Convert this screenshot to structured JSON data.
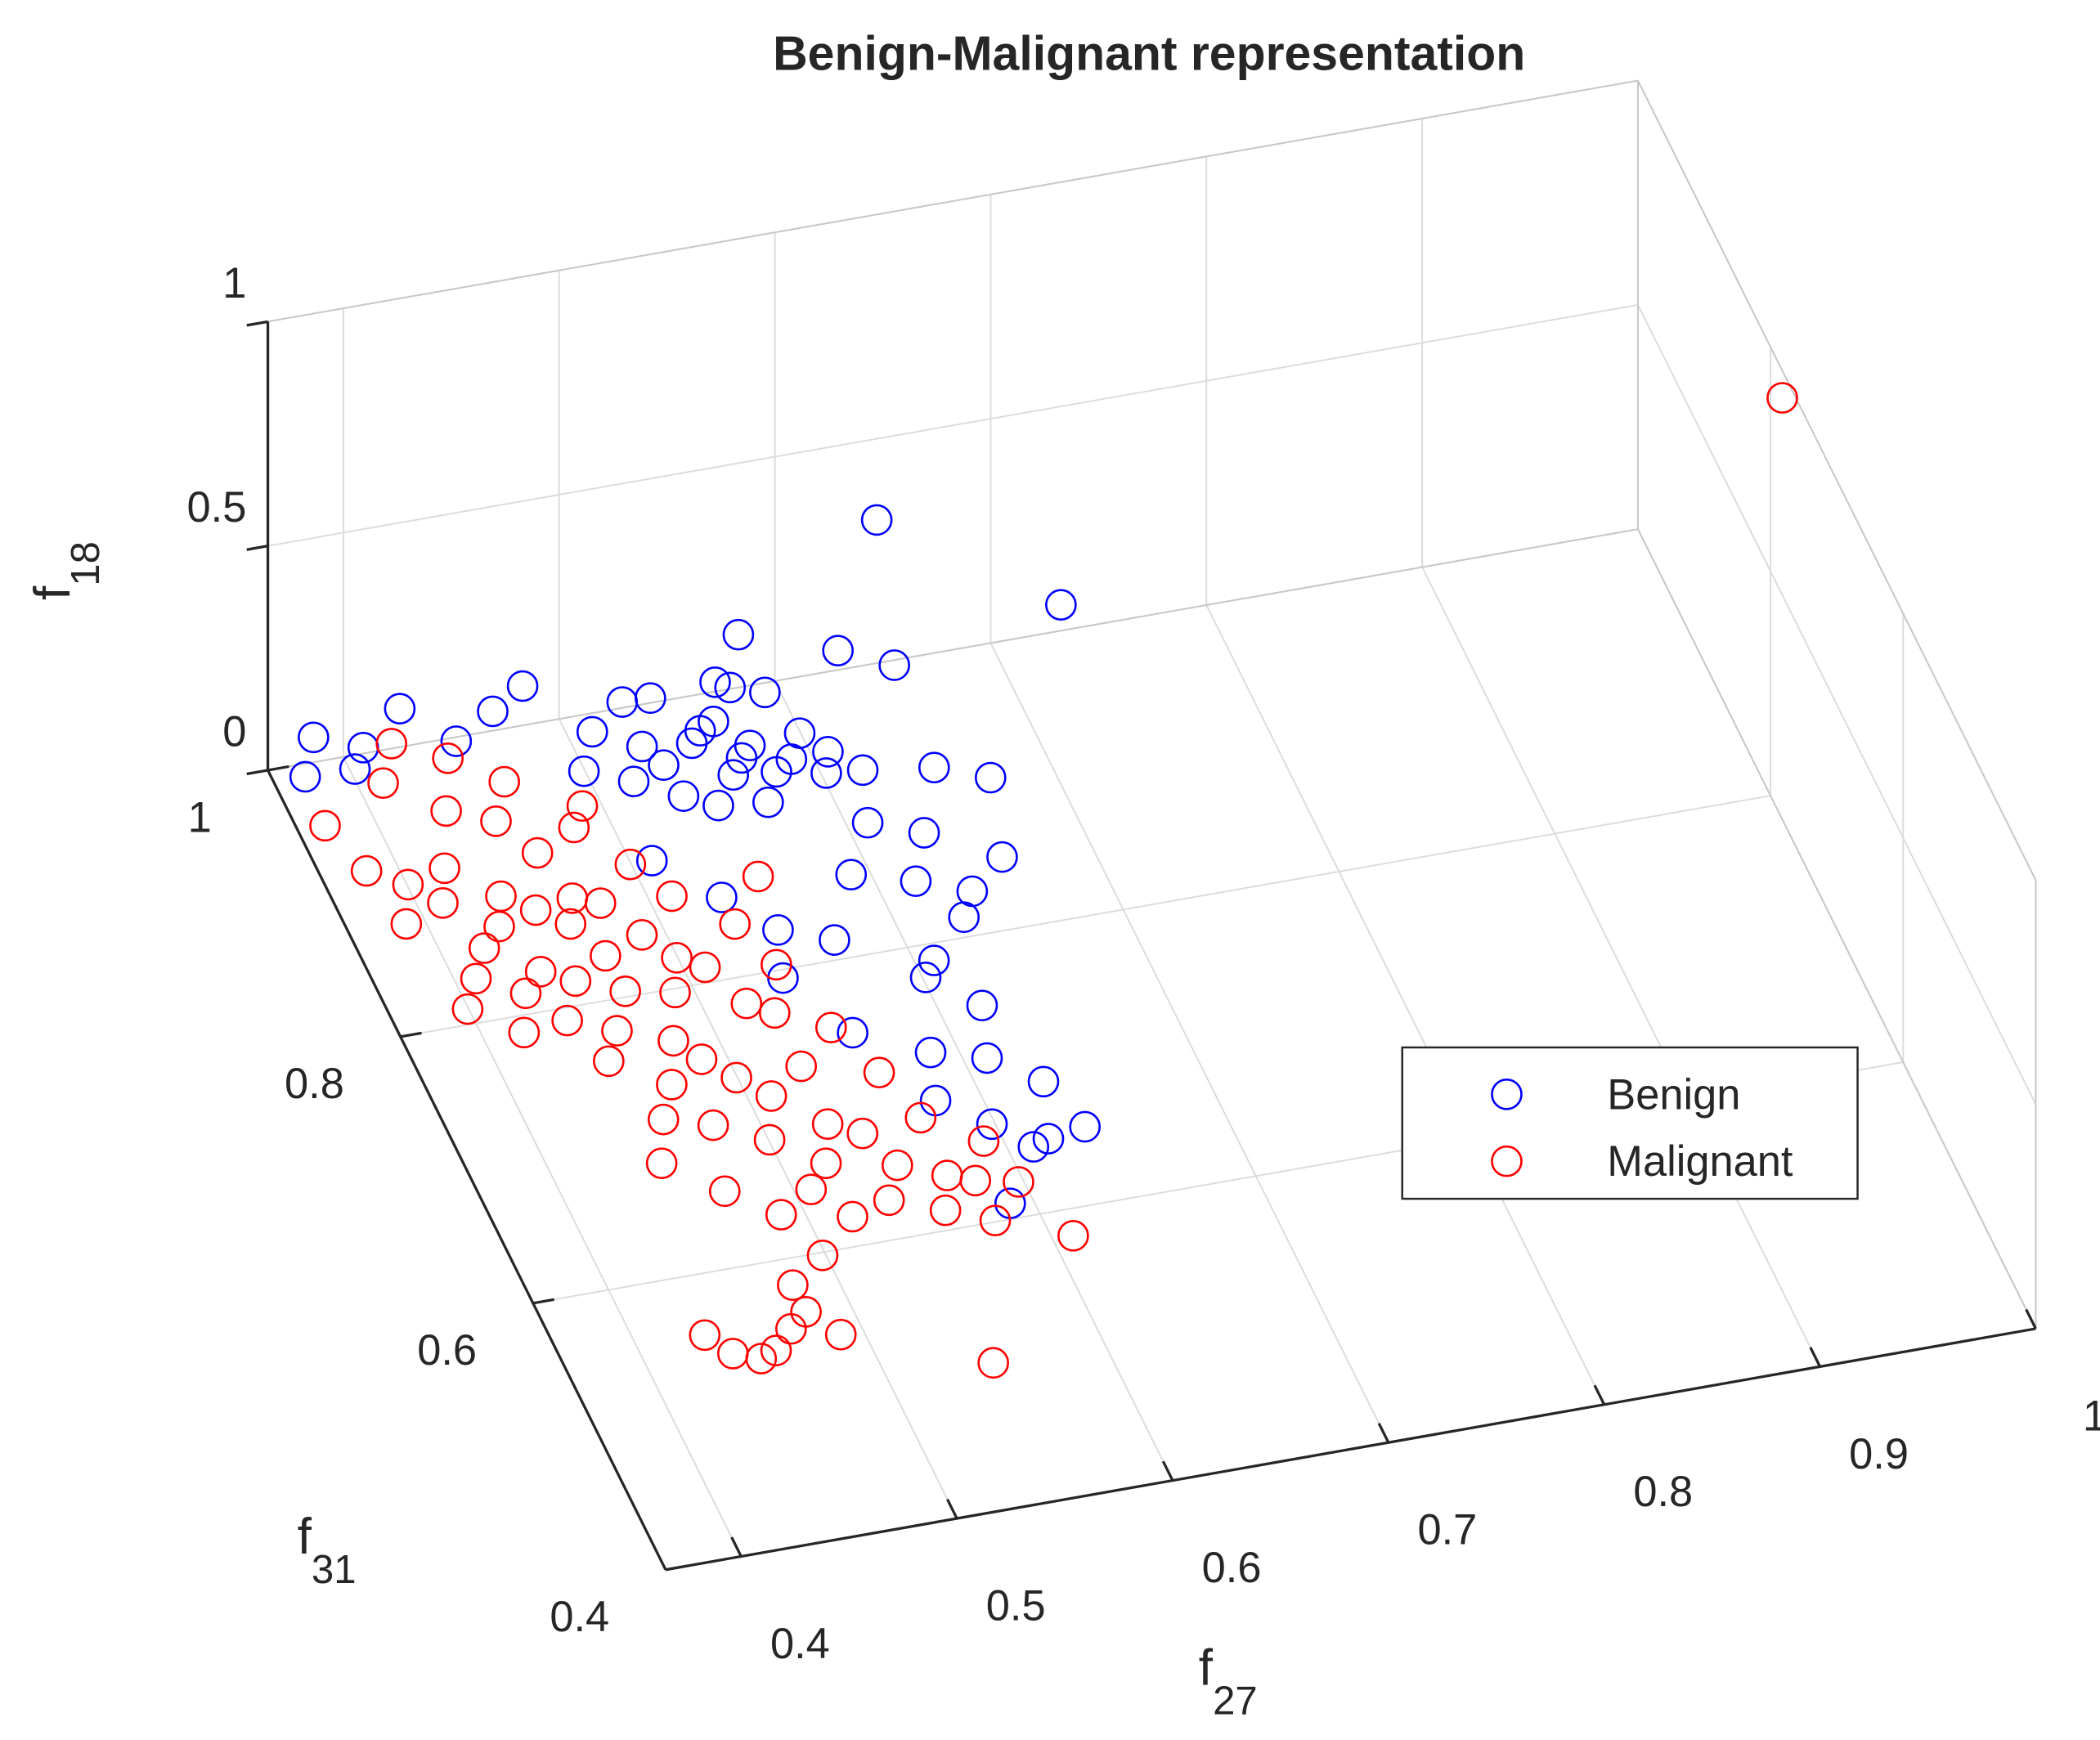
{
  "chart_data": {
    "type": "scatter3d",
    "title": "Benign-Malignant representation",
    "xlabel": {
      "text": "f",
      "subscript": "27"
    },
    "ylabel": {
      "text": "f",
      "subscript": "31"
    },
    "zlabel": {
      "text": "f",
      "subscript": "18"
    },
    "xlim": [
      0.365,
      1
    ],
    "ylim": [
      0.4,
      1
    ],
    "zlim": [
      0,
      1
    ],
    "xticks": [
      0.4,
      0.5,
      0.6,
      0.7,
      0.8,
      0.9,
      1
    ],
    "yticks": [
      0.4,
      0.6,
      0.8,
      1
    ],
    "zticks": [
      0,
      0.5,
      1
    ],
    "grid": true,
    "legend": "east",
    "series": [
      {
        "name": "Benign",
        "color": "#0000ff",
        "x": [
          0.52,
          0.54,
          0.55,
          0.56,
          0.53,
          0.57,
          0.58,
          0.51,
          0.55,
          0.59,
          0.5,
          0.53,
          0.56,
          0.54,
          0.57,
          0.6,
          0.52,
          0.58,
          0.49,
          0.55,
          0.61,
          0.56,
          0.53,
          0.59,
          0.57,
          0.58,
          0.62,
          0.64,
          0.48,
          0.6,
          0.62,
          0.61,
          0.63,
          0.62,
          0.6,
          0.59,
          0.61,
          0.58,
          0.6,
          0.62,
          0.59,
          0.61,
          0.6,
          0.57,
          0.55,
          0.56,
          0.58,
          0.65,
          0.66,
          0.64,
          0.63,
          0.58,
          0.38,
          0.37,
          0.39,
          0.4,
          0.42,
          0.44,
          0.46,
          0.5,
          0.52,
          0.54,
          0.53,
          0.63,
          0.7
        ],
        "y": [
          0.94,
          0.93,
          0.95,
          0.92,
          0.96,
          0.94,
          0.91,
          0.92,
          0.9,
          0.93,
          0.95,
          0.91,
          0.96,
          0.89,
          0.9,
          0.92,
          0.97,
          0.95,
          0.93,
          0.93,
          0.9,
          0.88,
          0.94,
          0.89,
          0.97,
          0.99,
          0.97,
          0.95,
          0.99,
          0.86,
          0.84,
          0.82,
          0.8,
          0.78,
          0.76,
          0.74,
          0.72,
          0.7,
          0.68,
          0.66,
          0.64,
          0.62,
          0.61,
          0.66,
          0.72,
          0.78,
          0.82,
          0.82,
          0.87,
          0.89,
          0.63,
          0.58,
          0.98,
          0.96,
          0.95,
          0.97,
          0.98,
          0.96,
          0.97,
          0.86,
          0.82,
          0.8,
          0.76,
          0.944,
          0.894
        ],
        "z": [
          0.1,
          0.12,
          0.08,
          0.1,
          0.14,
          0.06,
          0.11,
          0.09,
          0.13,
          0.1,
          0.12,
          0.07,
          0.15,
          0.1,
          0.12,
          0.08,
          0.11,
          0.14,
          0.1,
          0.16,
          0.09,
          0.12,
          0.05,
          0.13,
          0.1,
          0.15,
          0.14,
          0.15,
          0.12,
          0.1,
          0.12,
          0.08,
          0.1,
          0.11,
          0.09,
          0.12,
          0.1,
          0.08,
          0.11,
          0.1,
          0.09,
          0.1,
          0.12,
          0.1,
          0.09,
          0.11,
          0.12,
          0.1,
          0.12,
          0.1,
          0.08,
          0.1,
          0.12,
          0.1,
          0.13,
          0.11,
          0.15,
          0.12,
          0.14,
          0.1,
          0.12,
          0.09,
          0.11,
          0.5,
          0.4
        ]
      },
      {
        "name": "Malignant",
        "color": "#ff0000",
        "x": [
          0.44,
          0.45,
          0.43,
          0.46,
          0.42,
          0.47,
          0.44,
          0.41,
          0.45,
          0.48,
          0.43,
          0.46,
          0.4,
          0.42,
          0.49,
          0.44,
          0.47,
          0.5,
          0.41,
          0.45,
          0.48,
          0.43,
          0.46,
          0.39,
          0.42,
          0.5,
          0.47,
          0.44,
          0.52,
          0.51,
          0.4,
          0.38,
          0.49,
          0.53,
          0.45,
          0.48,
          0.41,
          0.39,
          0.54,
          0.43,
          0.37,
          0.4,
          0.41,
          0.38,
          0.49,
          0.5,
          0.52,
          0.51,
          0.53,
          0.5,
          0.54,
          0.49,
          0.52,
          0.55,
          0.56,
          0.48,
          0.47,
          0.46,
          0.53,
          0.51,
          0.55,
          0.57,
          0.58,
          0.56,
          0.57,
          0.59,
          0.54,
          0.52,
          0.45,
          0.48,
          0.49,
          0.46,
          0.44,
          0.47,
          0.43,
          0.44,
          0.45,
          0.46,
          0.47,
          0.48,
          0.42,
          0.539,
          0.6,
          0.999
        ],
        "y": [
          0.84,
          0.82,
          0.86,
          0.8,
          0.83,
          0.84,
          0.78,
          0.88,
          0.87,
          0.81,
          0.8,
          0.77,
          0.85,
          0.79,
          0.79,
          0.9,
          0.88,
          0.83,
          0.82,
          0.75,
          0.76,
          0.76,
          0.85,
          0.87,
          0.91,
          0.78,
          0.73,
          0.73,
          0.8,
          0.75,
          0.8,
          0.84,
          0.86,
          0.77,
          0.92,
          0.9,
          0.76,
          0.78,
          0.83,
          0.94,
          0.93,
          0.94,
          0.96,
          0.9,
          0.7,
          0.68,
          0.66,
          0.63,
          0.64,
          0.62,
          0.62,
          0.65,
          0.7,
          0.68,
          0.65,
          0.72,
          0.67,
          0.7,
          0.6,
          0.59,
          0.58,
          0.6,
          0.62,
          0.61,
          0.57,
          0.6,
          0.72,
          0.74,
          0.68,
          0.6,
          0.57,
          0.62,
          0.65,
          0.55,
          0.51,
          0.5,
          0.51,
          0.52,
          0.53,
          0.51,
          0.52,
          0.472,
          0.55,
          0.779
        ],
        "z": [
          0.1,
          0.12,
          0.08,
          0.1,
          0.11,
          0.09,
          0.12,
          0.1,
          0.13,
          0.1,
          0.09,
          0.11,
          0.12,
          0.08,
          0.1,
          0.12,
          0.14,
          0.11,
          0.1,
          0.09,
          0.12,
          0.1,
          0.08,
          0.11,
          0.13,
          0.1,
          0.11,
          0.09,
          0.12,
          0.1,
          0.1,
          0.12,
          0.1,
          0.11,
          0.14,
          0.12,
          0.09,
          0.1,
          0.12,
          0.15,
          0.08,
          0.12,
          0.14,
          0.06,
          0.1,
          0.11,
          0.09,
          0.1,
          0.12,
          0.08,
          0.1,
          0.11,
          0.1,
          0.12,
          0.1,
          0.09,
          0.1,
          0.11,
          0.09,
          0.1,
          0.11,
          0.1,
          0.12,
          0.09,
          0.1,
          0.08,
          0.11,
          0.1,
          0.1,
          0.1,
          0.09,
          0.11,
          0.1,
          0.1,
          0.1,
          0.11,
          0.09,
          0.1,
          0.1,
          0.1,
          0.12,
          0.1,
          0.1,
          0.95
        ]
      }
    ]
  }
}
